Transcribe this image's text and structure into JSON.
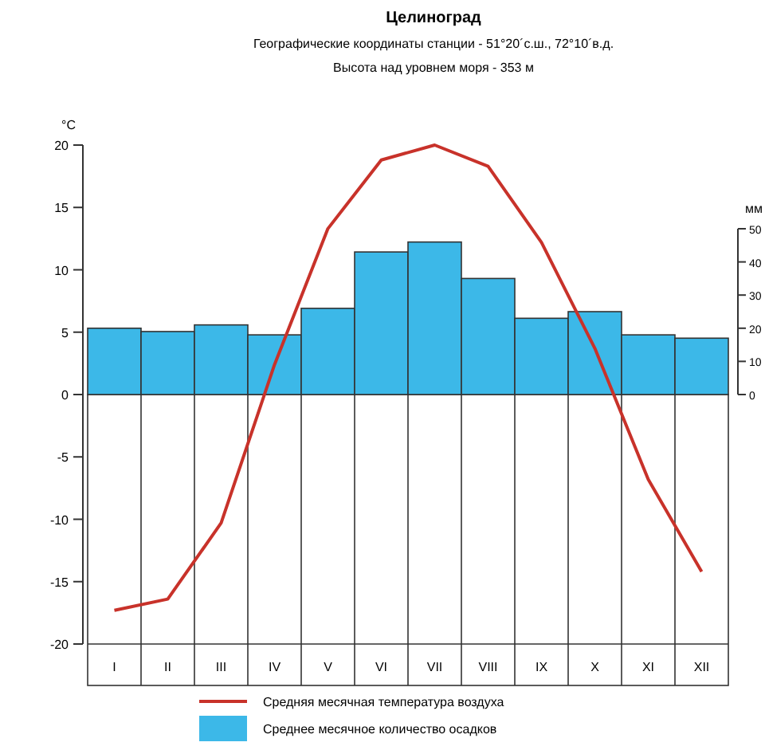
{
  "chart_data": {
    "type": "bar",
    "title": "Целиноград",
    "subtitle": "Географические координаты станции - 51°20´с.ш., 72°10´в.д.",
    "annotations": [
      "Высота над уровнем моря - 353 м"
    ],
    "ylabel": "°C",
    "y2label": "мм",
    "categories": [
      "I",
      "II",
      "III",
      "IV",
      "V",
      "VI",
      "VII",
      "VIII",
      "IX",
      "X",
      "XI",
      "XII"
    ],
    "series": [
      {
        "name": "Среднее месячное количество осадков",
        "axis": "y2",
        "color": "#3cb8e8",
        "values": [
          20,
          19,
          21,
          18,
          26,
          43,
          46,
          35,
          23,
          25,
          18,
          17
        ]
      },
      {
        "name": "Средняя месячная температура воздуха",
        "type": "line",
        "axis": "y",
        "color": "#c8322a",
        "values": [
          -17.3,
          -16.4,
          -10.3,
          2.4,
          13.3,
          18.8,
          20,
          18.3,
          12.2,
          3.7,
          -6.8,
          -14.2
        ]
      }
    ],
    "ylim": [
      -20,
      20
    ],
    "yticks": [
      -20,
      -15,
      -10,
      -5,
      0,
      5,
      10,
      15,
      20
    ],
    "y2lim": [
      0,
      50
    ],
    "y2ticks": [
      0,
      10,
      20,
      30,
      40,
      50
    ],
    "legend": "bottom",
    "marker": "none",
    "line_style": "solid"
  }
}
